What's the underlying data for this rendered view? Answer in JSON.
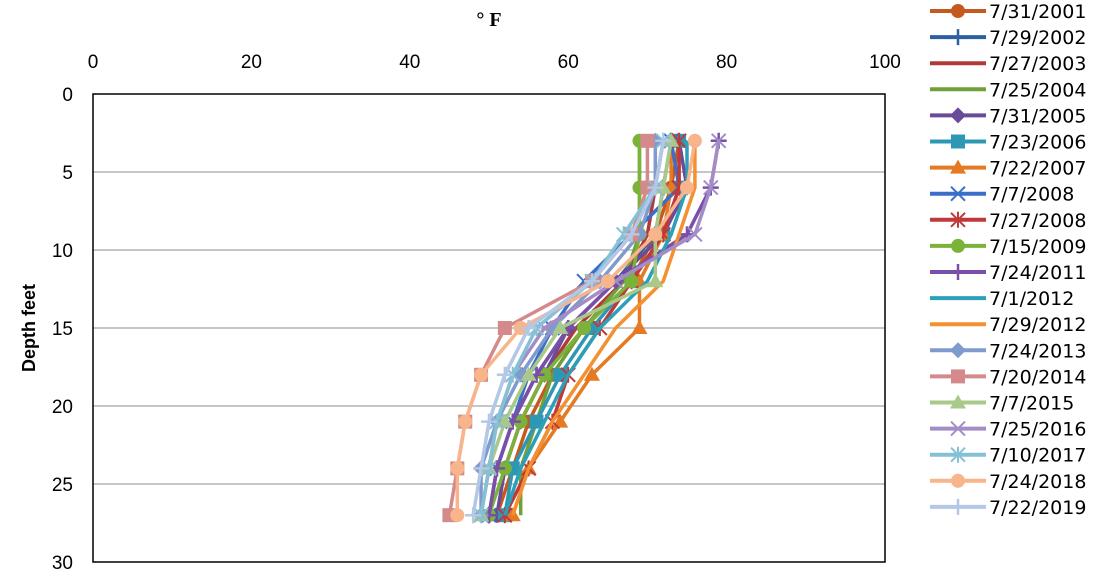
{
  "chart_data": {
    "type": "line",
    "title": "",
    "xlabel": "° F",
    "ylabel": "Depth feet",
    "x_axis_position": "top",
    "y_axis_inverted": true,
    "xlim": [
      0,
      100
    ],
    "ylim": [
      0,
      30
    ],
    "x_ticks": [
      "0",
      "20",
      "40",
      "60",
      "80",
      "100"
    ],
    "y_ticks": [
      "0",
      "5",
      "10",
      "15",
      "20",
      "25",
      "30"
    ],
    "grid": "horizontal",
    "legend_placement": "right",
    "depths": [
      3,
      6,
      9,
      12,
      15,
      18,
      21,
      24,
      27
    ],
    "series": [
      {
        "name": "7/31/2001",
        "color": "#C65A1E",
        "marker": "circle",
        "values": [
          74,
          73,
          71,
          68,
          62,
          58,
          55,
          53,
          51
        ]
      },
      {
        "name": "7/29/2002",
        "color": "#2E5FA3",
        "marker": "plus",
        "values": [
          73,
          72,
          71,
          66,
          60,
          56,
          53,
          51,
          50
        ]
      },
      {
        "name": "7/27/2003",
        "color": "#B03A3A",
        "marker": "none",
        "values": [
          72,
          71,
          70,
          67,
          61,
          57,
          54,
          52,
          51
        ]
      },
      {
        "name": "7/25/2004",
        "color": "#70A03A",
        "marker": "none",
        "values": [
          69,
          69,
          69,
          67,
          62,
          58,
          56,
          54,
          54
        ]
      },
      {
        "name": "7/31/2005",
        "color": "#6A4A9A",
        "marker": "diamond",
        "values": [
          74,
          75,
          72,
          66,
          60,
          57,
          54,
          52,
          51
        ]
      },
      {
        "name": "7/23/2006",
        "color": "#2E97B3",
        "marker": "square",
        "values": [
          74,
          74,
          72,
          68,
          63,
          59,
          56,
          53,
          52
        ]
      },
      {
        "name": "7/22/2007",
        "color": "#E57A22",
        "marker": "triangle",
        "values": [
          73,
          73,
          72,
          69,
          69,
          63,
          59,
          55,
          53
        ]
      },
      {
        "name": "7/7/2008",
        "color": "#3A6EC8",
        "marker": "x",
        "values": [
          73,
          74,
          68,
          62,
          58,
          55,
          53,
          51,
          50
        ]
      },
      {
        "name": "7/27/2008",
        "color": "#C0393A",
        "marker": "star",
        "values": [
          74,
          74,
          72,
          68,
          64,
          60,
          58,
          55,
          52
        ]
      },
      {
        "name": "7/15/2009",
        "color": "#7DB23A",
        "marker": "circle",
        "values": [
          69,
          69,
          69,
          68,
          62,
          57,
          54,
          52,
          50
        ]
      },
      {
        "name": "7/24/2011",
        "color": "#7A4FA8",
        "marker": "plus",
        "values": [
          79,
          78,
          75,
          66,
          60,
          56,
          53,
          51,
          50
        ]
      },
      {
        "name": "7/1/2012",
        "color": "#2BA0B8",
        "marker": "none",
        "values": [
          75,
          75,
          73,
          70,
          64,
          60,
          57,
          54,
          52
        ]
      },
      {
        "name": "7/29/2012",
        "color": "#F39030",
        "marker": "none",
        "values": [
          76,
          76,
          74,
          72,
          66,
          62,
          58,
          55,
          53
        ]
      },
      {
        "name": "7/24/2013",
        "color": "#7F9ACC",
        "marker": "diamond",
        "values": [
          71,
          71,
          69,
          64,
          58,
          54,
          51,
          49,
          49
        ]
      },
      {
        "name": "7/20/2014",
        "color": "#D48A8A",
        "marker": "square",
        "values": [
          70,
          70,
          68,
          63,
          52,
          49,
          47,
          46,
          45
        ]
      },
      {
        "name": "7/7/2015",
        "color": "#A9C98A",
        "marker": "triangle",
        "values": [
          73,
          72,
          71,
          71,
          59,
          55,
          52,
          50,
          49
        ]
      },
      {
        "name": "7/25/2016",
        "color": "#A48CC6",
        "marker": "x",
        "values": [
          79,
          78,
          76,
          66,
          57,
          53,
          51,
          50,
          49
        ]
      },
      {
        "name": "7/10/2017",
        "color": "#85C1D4",
        "marker": "star",
        "values": [
          72,
          71,
          67,
          63,
          56,
          53,
          51,
          50,
          49
        ]
      },
      {
        "name": "7/24/2018",
        "color": "#F8B48A",
        "marker": "circle",
        "values": [
          76,
          75,
          71,
          65,
          54,
          49,
          47,
          46,
          46
        ]
      },
      {
        "name": "7/22/2019",
        "color": "#B3C7E6",
        "marker": "plus",
        "values": [
          72,
          71,
          68,
          63,
          55,
          52,
          50,
          49,
          48
        ]
      }
    ]
  }
}
